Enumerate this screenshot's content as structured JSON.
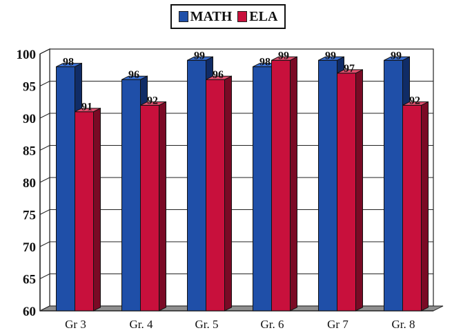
{
  "chart_data": {
    "type": "bar",
    "title": "",
    "xlabel": "",
    "ylabel": "",
    "categories": [
      "Gr 3",
      "Gr. 4",
      "Gr. 5",
      "Gr. 6",
      "Gr 7",
      "Gr. 8"
    ],
    "series": [
      {
        "name": "MATH",
        "color": "#1f4fa8",
        "values": [
          98,
          96,
          99,
          98,
          99,
          99
        ]
      },
      {
        "name": "ELA",
        "color": "#c8103c",
        "values": [
          91,
          92,
          96,
          99,
          97,
          92
        ]
      }
    ],
    "yticks": [
      "60",
      "65",
      "70",
      "75",
      "80",
      "85",
      "90",
      "95",
      "100"
    ],
    "ylim": [
      60,
      100
    ],
    "grid": true,
    "legend_position": "top-center",
    "style": "3d-bar"
  }
}
